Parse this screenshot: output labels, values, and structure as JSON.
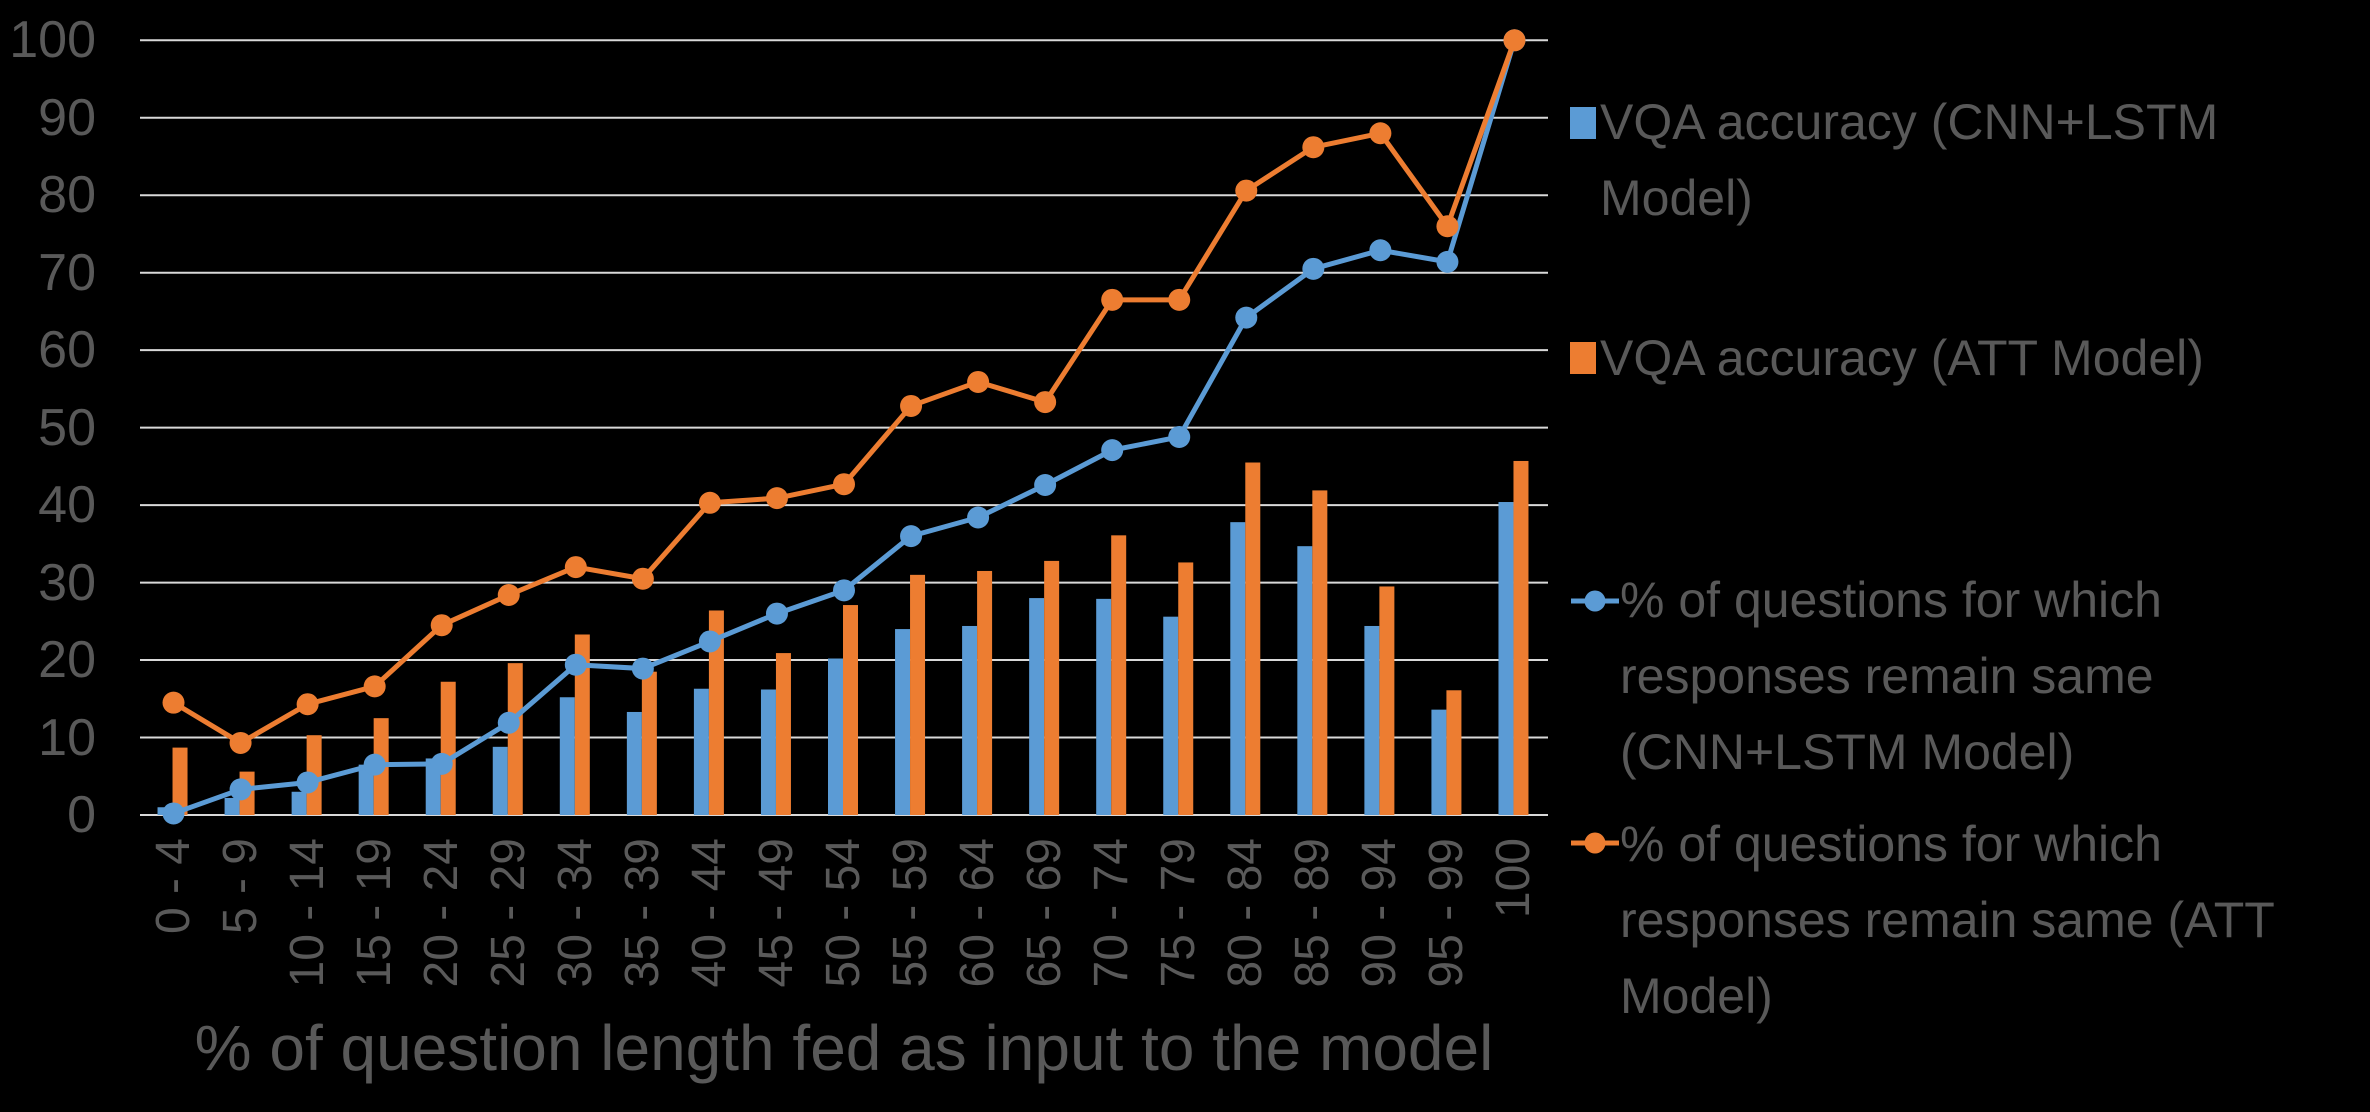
{
  "chart_data": {
    "type": "combo-bar-line",
    "title": "",
    "xlabel": "% of question length fed as input to the model",
    "ylabel": "",
    "ylim": [
      0,
      100
    ],
    "ytick_step": 10,
    "grid": "horizontal",
    "legend_position": "right",
    "background_color": "#000000",
    "text_color": "#595959",
    "gridline_color": "#D9D9D9",
    "categories": [
      "0 - 4",
      "5 - 9",
      "10 - 14",
      "15 - 19",
      "20 - 24",
      "25 - 29",
      "30 - 34",
      "35 - 39",
      "40 - 44",
      "45 - 49",
      "50 - 54",
      "55 - 59",
      "60 - 64",
      "65 - 69",
      "70 - 74",
      "75 - 79",
      "80 - 84",
      "85 - 89",
      "90 - 94",
      "95 - 99",
      "100"
    ],
    "series": [
      {
        "name": "VQA accuracy (CNN+LSTM Model)",
        "type": "bar",
        "color": "#5B9BD5",
        "values": [
          1.0,
          2.2,
          3.0,
          6.5,
          7.3,
          8.8,
          15.2,
          13.3,
          16.3,
          16.2,
          20.2,
          24.0,
          24.4,
          28.0,
          27.9,
          25.6,
          37.8,
          34.7,
          24.4,
          13.6,
          40.4
        ]
      },
      {
        "name": "VQA accuracy (ATT Model)",
        "type": "bar",
        "color": "#ED7D31",
        "values": [
          8.7,
          5.6,
          10.3,
          12.5,
          17.2,
          19.6,
          23.3,
          18.5,
          26.4,
          20.9,
          27.1,
          31.0,
          31.5,
          32.8,
          36.1,
          32.6,
          45.5,
          41.9,
          29.5,
          16.1,
          45.7
        ]
      },
      {
        "name": "% of questions for which responses remain same (CNN+LSTM Model)",
        "type": "line",
        "color": "#5B9BD5",
        "values": [
          0.2,
          3.3,
          4.2,
          6.5,
          6.6,
          11.9,
          19.4,
          18.9,
          22.4,
          26.0,
          29.0,
          36.0,
          38.4,
          42.6,
          47.1,
          48.8,
          64.2,
          70.5,
          72.9,
          71.4,
          100.0
        ]
      },
      {
        "name": "% of questions for which responses remain same (ATT Model)",
        "type": "line",
        "color": "#ED7D31",
        "values": [
          14.5,
          9.3,
          14.3,
          16.6,
          24.5,
          28.4,
          32.0,
          30.5,
          40.3,
          40.9,
          42.7,
          52.8,
          55.9,
          53.3,
          66.5,
          66.5,
          80.6,
          86.2,
          88.0,
          76.0,
          100.0
        ]
      }
    ]
  },
  "axes": {
    "y_ticks": [
      "0",
      "10",
      "20",
      "30",
      "40",
      "50",
      "60",
      "70",
      "80",
      "90",
      "100"
    ]
  },
  "legend": {
    "items": [
      {
        "label": "VQA accuracy (CNN+LSTM Model)",
        "lines": [
          "VQA accuracy (CNN+LSTM",
          "Model)"
        ],
        "marker": "square",
        "color": "#5B9BD5"
      },
      {
        "label": "VQA accuracy (ATT Model)",
        "lines": [
          "VQA accuracy (ATT Model)"
        ],
        "marker": "square",
        "color": "#ED7D31"
      },
      {
        "label": "% of questions for which responses remain same (CNN+LSTM Model)",
        "lines": [
          "% of questions for which",
          "responses remain same",
          "(CNN+LSTM Model)"
        ],
        "marker": "line-dot",
        "color": "#5B9BD5"
      },
      {
        "label": "% of questions for which responses remain same (ATT Model)",
        "lines": [
          "% of questions for which",
          "responses remain same (ATT",
          "Model)"
        ],
        "marker": "line-dot",
        "color": "#ED7D31"
      }
    ]
  }
}
